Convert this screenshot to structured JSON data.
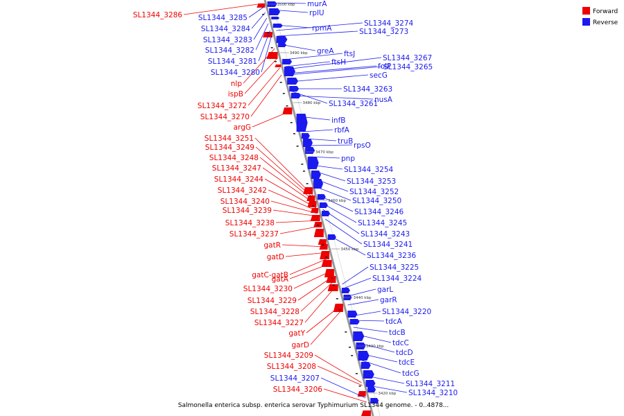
{
  "colors": {
    "forward": "#ee0000",
    "reverse": "#1a1aee",
    "axis": "#999999",
    "axis_light": "#e0e0e0"
  },
  "legend": [
    {
      "label": "Forward",
      "strand": "forward"
    },
    {
      "label": "Reverse",
      "strand": "reverse"
    }
  ],
  "caption": "Salmonella enterica subsp. enterica serovar Typhimurium SL1344 genome. - 0..4878...",
  "ticks": [
    "3500 kbp",
    "3490 kbp",
    "3480 kbp",
    "3470 kbp",
    "3460 kbp",
    "3450 kbp",
    "3440 kbp",
    "3430 kbp",
    "3420 kbp"
  ],
  "forward_genes": [
    "SL1344_3286",
    "SL1344_3285",
    "SL1344_3284",
    "SL1344_3283",
    "SL1344_3282",
    "SL1344_3281",
    "SL1344_3280",
    "nlp",
    "ispB",
    "SL1344_3272",
    "SL1344_3270",
    "argG",
    "SL1344_3251",
    "SL1344_3249",
    "SL1344_3248",
    "SL1344_3247",
    "SL1344_3244",
    "SL1344_3242",
    "SL1344_3240",
    "SL1344_3239",
    "SL1344_3238",
    "SL1344_3237",
    "gatR",
    "gatD",
    "gatC-gatB",
    "gatA",
    "SL1344_3230",
    "SL1344_3229",
    "SL1344_3228",
    "SL1344_3227",
    "gatY",
    "garD",
    "SL1344_3209",
    "SL1344_3208",
    "SL1344_3207",
    "SL1344_3206"
  ],
  "forward_strands": [
    "forward",
    "reverse",
    "reverse",
    "reverse",
    "reverse",
    "reverse",
    "reverse",
    "forward",
    "forward",
    "forward",
    "forward",
    "forward",
    "forward",
    "forward",
    "forward",
    "forward",
    "forward",
    "forward",
    "forward",
    "forward",
    "forward",
    "forward",
    "forward",
    "forward",
    "forward",
    "forward",
    "forward",
    "forward",
    "forward",
    "forward",
    "forward",
    "forward",
    "forward",
    "forward",
    "reverse",
    "forward"
  ],
  "reverse_genes": [
    "murA",
    "rplU",
    "rpmA",
    "SL1344_3274",
    "SL1344_3273",
    "greA",
    "ftsJ",
    "ftsH",
    "SL1344_3267",
    "folP",
    "SL1344_3265",
    "secG",
    "SL1344_3263",
    "nusA",
    "SL1344_3261",
    "infB",
    "rbfA",
    "truB",
    "rpsO",
    "pnp",
    "SL1344_3254",
    "SL1344_3253",
    "SL1344_3252",
    "SL1344_3250",
    "SL1344_3246",
    "SL1344_3245",
    "SL1344_3243",
    "SL1344_3241",
    "SL1344_3236",
    "SL1344_3225",
    "SL1344_3224",
    "garL",
    "garR",
    "SL1344_3220",
    "tdcA",
    "tdcB",
    "tdcC",
    "tdcD",
    "tdcE",
    "tdcG",
    "SL1344_3211",
    "SL1344_3210"
  ]
}
